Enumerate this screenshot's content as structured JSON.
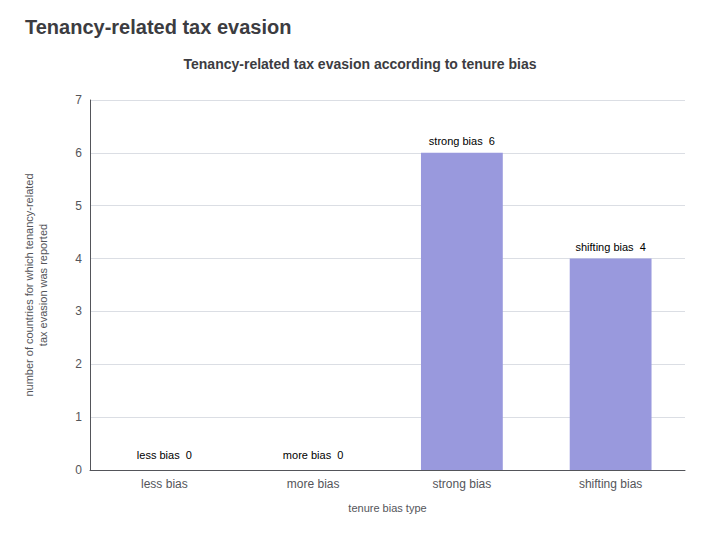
{
  "chart_data": {
    "type": "bar",
    "title": "Tenancy-related tax evasion",
    "subtitle": "Tenancy-related tax evasion according to tenure bias",
    "categories": [
      "less bias",
      "more bias",
      "strong bias",
      "shifting bias"
    ],
    "values": [
      0,
      0,
      6,
      4
    ],
    "colors": [
      "#b0b0b0",
      "#b0b0b0",
      "#9999dd",
      "#9999dd"
    ],
    "xlabel": "tenure bias type",
    "ylabel": "number of countries for which tenancy-related\ntax evasion was reported",
    "ylim": [
      0,
      7
    ],
    "yticks": [
      0,
      1,
      2,
      3,
      4,
      5,
      6,
      7
    ],
    "grid": true,
    "annotations": [
      {
        "text": "less bias  0",
        "x": "less bias",
        "y": 0.15
      },
      {
        "text": "more bias  0",
        "x": "more bias",
        "y": 0.15
      },
      {
        "text": "strong bias  6",
        "x": "strong bias",
        "y": 6.08
      },
      {
        "text": "shifting bias  4",
        "x": "shifting bias",
        "y": 4.08
      }
    ]
  }
}
